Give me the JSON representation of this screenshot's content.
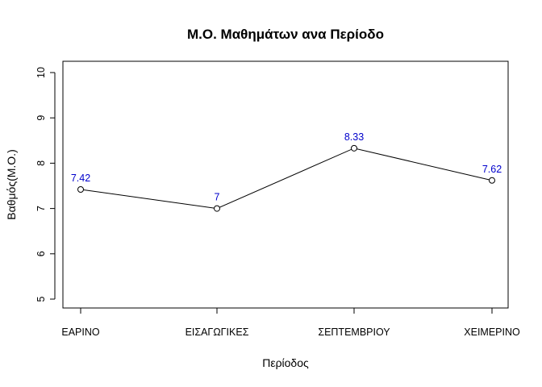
{
  "chart_data": {
    "type": "line",
    "title": "Μ.Ο. Μαθημάτων ανα Περίοδο",
    "xlabel": "Περίοδος",
    "ylabel": "Βαθμός(Μ.Ο.)",
    "categories": [
      "ΕΑΡΙΝΟ",
      "ΕΙΣΑΓΩΓΙΚΕΣ",
      "ΣΕΠΤΕΜΒΡΙΟΥ",
      "ΧΕΙΜΕΡΙΝΟ"
    ],
    "values": [
      7.42,
      7,
      8.33,
      7.62
    ],
    "data_labels": [
      "7.42",
      "7",
      "8.33",
      "7.62"
    ],
    "ylim": [
      5,
      10
    ],
    "yticks": [
      5,
      6,
      7,
      8,
      9,
      10
    ],
    "grid": false,
    "markers": "open-circle",
    "line_color": "#000000",
    "label_color": "#0000cc"
  }
}
